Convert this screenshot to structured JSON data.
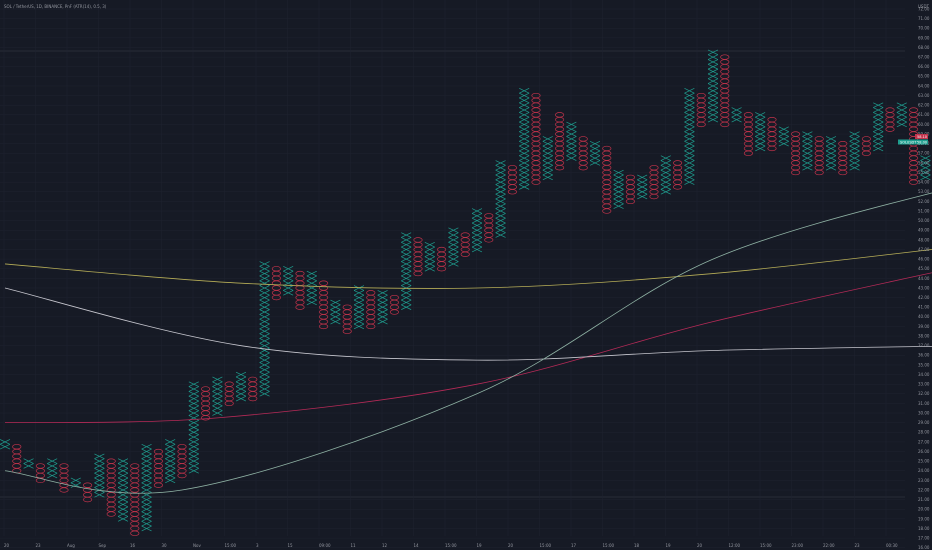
{
  "header": {
    "title": "SOL / TetherUS, 1D, BINANCE, PnF (ATR(14), 0.5, 3)",
    "currency": "USDT"
  },
  "colors": {
    "background": "#161a25",
    "grid": "#1f2330",
    "x_box": "#1f9e8f",
    "o_box": "#c2334b",
    "ma_yellow": "#b6ad57",
    "ma_red": "#b52a57",
    "ma_white": "#c7c7cf",
    "ma_teal": "#8fb2a4",
    "price_label": "#1f9e8f",
    "prev_label": "#c2334b"
  },
  "price_badge": {
    "symbol_label": "SOLUSDT",
    "value": "58.00"
  },
  "prev_badge": {
    "value": "58.10"
  },
  "chart_data": {
    "type": "point_and_figure",
    "title": "SOL / TetherUS, 1D, BINANCE, PnF (ATR(14), 0.5, 3)",
    "box_size": 0.5,
    "reversal": 3,
    "y_ticks": [
      "72.00",
      "71.00",
      "70.00",
      "69.00",
      "68.00",
      "67.00",
      "66.00",
      "65.00",
      "64.00",
      "63.00",
      "62.00",
      "61.00",
      "60.00",
      "59.00",
      "58.00",
      "57.00",
      "56.00",
      "55.00",
      "54.00",
      "53.00",
      "52.00",
      "51.00",
      "50.00",
      "49.00",
      "48.00",
      "47.00",
      "46.00",
      "45.00",
      "44.00",
      "43.00",
      "42.00",
      "41.00",
      "40.00",
      "39.00",
      "38.00",
      "37.00",
      "36.00",
      "35.00",
      "34.00",
      "33.00",
      "32.00",
      "31.00",
      "30.00",
      "29.00",
      "28.00",
      "27.00",
      "26.00",
      "25.00",
      "24.00",
      "23.00",
      "22.00",
      "21.00",
      "20.00",
      "19.00",
      "18.00",
      "17.00",
      "16.00",
      "15.00",
      "14.00"
    ],
    "ylim": [
      14,
      72.5
    ],
    "x_ticks": [
      "20",
      "23",
      "Aug",
      "Sep",
      "16",
      "30",
      "Nov",
      "15:00",
      "3",
      "15",
      "09:00",
      "11",
      "12",
      "14",
      "15:00",
      "19",
      "20",
      "15:00",
      "17",
      "15:00",
      "18",
      "19",
      "20",
      "12:00",
      "15:00",
      "23:00",
      "22:00",
      "23",
      "00:30"
    ],
    "columns": [
      {
        "t": "X",
        "lo": 26.5,
        "hi": 27.0
      },
      {
        "t": "O",
        "lo": 24.0,
        "hi": 26.5
      },
      {
        "t": "X",
        "lo": 24.5,
        "hi": 25.0
      },
      {
        "t": "O",
        "lo": 23.0,
        "hi": 24.5
      },
      {
        "t": "X",
        "lo": 23.5,
        "hi": 25.0
      },
      {
        "t": "O",
        "lo": 22.0,
        "hi": 24.5
      },
      {
        "t": "X",
        "lo": 22.5,
        "hi": 23.0
      },
      {
        "t": "O",
        "lo": 21.0,
        "hi": 22.5
      },
      {
        "t": "X",
        "lo": 21.5,
        "hi": 25.5
      },
      {
        "t": "O",
        "lo": 19.5,
        "hi": 25.0
      },
      {
        "t": "X",
        "lo": 19.0,
        "hi": 25.0
      },
      {
        "t": "O",
        "lo": 17.5,
        "hi": 24.5
      },
      {
        "t": "X",
        "lo": 18.0,
        "hi": 26.5
      },
      {
        "t": "O",
        "lo": 22.5,
        "hi": 26.0
      },
      {
        "t": "X",
        "lo": 23.0,
        "hi": 27.0
      },
      {
        "t": "O",
        "lo": 23.5,
        "hi": 26.5
      },
      {
        "t": "X",
        "lo": 24.0,
        "hi": 33.0
      },
      {
        "t": "O",
        "lo": 29.5,
        "hi": 32.5
      },
      {
        "t": "X",
        "lo": 30.0,
        "hi": 33.5
      },
      {
        "t": "O",
        "lo": 31.0,
        "hi": 33.0
      },
      {
        "t": "X",
        "lo": 31.5,
        "hi": 34.0
      },
      {
        "t": "O",
        "lo": 31.5,
        "hi": 33.5
      },
      {
        "t": "X",
        "lo": 32.0,
        "hi": 45.5
      },
      {
        "t": "O",
        "lo": 42.0,
        "hi": 45.0
      },
      {
        "t": "X",
        "lo": 42.5,
        "hi": 45.0
      },
      {
        "t": "O",
        "lo": 41.0,
        "hi": 44.5
      },
      {
        "t": "X",
        "lo": 41.5,
        "hi": 44.5
      },
      {
        "t": "O",
        "lo": 39.0,
        "hi": 43.5
      },
      {
        "t": "X",
        "lo": 39.5,
        "hi": 41.5
      },
      {
        "t": "O",
        "lo": 38.5,
        "hi": 41.0
      },
      {
        "t": "X",
        "lo": 39.0,
        "hi": 43.0
      },
      {
        "t": "O",
        "lo": 39.0,
        "hi": 42.5
      },
      {
        "t": "X",
        "lo": 39.5,
        "hi": 42.5
      },
      {
        "t": "O",
        "lo": 40.5,
        "hi": 42.0
      },
      {
        "t": "X",
        "lo": 41.0,
        "hi": 48.5
      },
      {
        "t": "O",
        "lo": 44.5,
        "hi": 48.0
      },
      {
        "t": "X",
        "lo": 45.0,
        "hi": 47.5
      },
      {
        "t": "O",
        "lo": 45.0,
        "hi": 47.0
      },
      {
        "t": "X",
        "lo": 45.5,
        "hi": 49.0
      },
      {
        "t": "O",
        "lo": 46.5,
        "hi": 48.5
      },
      {
        "t": "X",
        "lo": 47.0,
        "hi": 51.0
      },
      {
        "t": "O",
        "lo": 48.0,
        "hi": 50.5
      },
      {
        "t": "X",
        "lo": 48.5,
        "hi": 56.0
      },
      {
        "t": "O",
        "lo": 53.0,
        "hi": 55.5
      },
      {
        "t": "X",
        "lo": 53.5,
        "hi": 63.5
      },
      {
        "t": "O",
        "lo": 54.0,
        "hi": 63.0
      },
      {
        "t": "X",
        "lo": 54.5,
        "hi": 58.5
      },
      {
        "t": "O",
        "lo": 55.5,
        "hi": 61.0
      },
      {
        "t": "X",
        "lo": 56.5,
        "hi": 60.0
      },
      {
        "t": "O",
        "lo": 55.5,
        "hi": 58.5
      },
      {
        "t": "X",
        "lo": 56.0,
        "hi": 58.0
      },
      {
        "t": "O",
        "lo": 51.0,
        "hi": 57.5
      },
      {
        "t": "X",
        "lo": 51.5,
        "hi": 55.0
      },
      {
        "t": "O",
        "lo": 52.0,
        "hi": 54.5
      },
      {
        "t": "X",
        "lo": 52.5,
        "hi": 54.5
      },
      {
        "t": "O",
        "lo": 52.5,
        "hi": 55.5
      },
      {
        "t": "X",
        "lo": 53.0,
        "hi": 56.5
      },
      {
        "t": "O",
        "lo": 53.5,
        "hi": 56.0
      },
      {
        "t": "X",
        "lo": 54.0,
        "hi": 63.5
      },
      {
        "t": "O",
        "lo": 60.0,
        "hi": 63.0
      },
      {
        "t": "X",
        "lo": 60.5,
        "hi": 67.5
      },
      {
        "t": "O",
        "lo": 60.0,
        "hi": 67.0
      },
      {
        "t": "X",
        "lo": 60.5,
        "hi": 61.5
      },
      {
        "t": "O",
        "lo": 57.0,
        "hi": 61.0
      },
      {
        "t": "X",
        "lo": 57.5,
        "hi": 61.0
      },
      {
        "t": "O",
        "lo": 57.5,
        "hi": 60.5
      },
      {
        "t": "X",
        "lo": 58.0,
        "hi": 59.5
      },
      {
        "t": "O",
        "lo": 55.0,
        "hi": 59.0
      },
      {
        "t": "X",
        "lo": 55.5,
        "hi": 59.0
      },
      {
        "t": "O",
        "lo": 55.0,
        "hi": 58.5
      },
      {
        "t": "X",
        "lo": 55.5,
        "hi": 58.5
      },
      {
        "t": "O",
        "lo": 55.0,
        "hi": 58.0
      },
      {
        "t": "X",
        "lo": 55.5,
        "hi": 59.0
      },
      {
        "t": "O",
        "lo": 57.0,
        "hi": 58.5
      },
      {
        "t": "X",
        "lo": 57.5,
        "hi": 62.0
      },
      {
        "t": "O",
        "lo": 59.5,
        "hi": 61.5
      },
      {
        "t": "X",
        "lo": 60.0,
        "hi": 62.0
      },
      {
        "t": "O",
        "lo": 54.0,
        "hi": 61.5
      },
      {
        "t": "X",
        "lo": 54.5,
        "hi": 56.5
      },
      {
        "t": "O",
        "lo": 53.5,
        "hi": 56.0
      },
      {
        "t": "X",
        "lo": 54.0,
        "hi": 55.0
      },
      {
        "t": "O",
        "lo": 52.0,
        "hi": 54.5
      },
      {
        "t": "X",
        "lo": 52.5,
        "hi": 58.5
      }
    ],
    "moving_averages": [
      {
        "color": "yellow",
        "values": [
          [
            0,
            45.5
          ],
          [
            20,
            43.5
          ],
          [
            40,
            43.0
          ],
          [
            60,
            44.5
          ],
          [
            82,
            47.5
          ]
        ]
      },
      {
        "color": "red",
        "values": [
          [
            0,
            29.0
          ],
          [
            18,
            29.5
          ],
          [
            40,
            33.0
          ],
          [
            60,
            39.5
          ],
          [
            82,
            45.5
          ]
        ]
      },
      {
        "color": "white",
        "values": [
          [
            0,
            43.0
          ],
          [
            20,
            37.0
          ],
          [
            40,
            35.5
          ],
          [
            60,
            36.5
          ],
          [
            82,
            37.0
          ]
        ]
      },
      {
        "color": "teal",
        "values": [
          [
            0,
            24.0
          ],
          [
            15,
            22.0
          ],
          [
            40,
            32.0
          ],
          [
            60,
            46.0
          ],
          [
            82,
            54.0
          ]
        ]
      }
    ]
  }
}
